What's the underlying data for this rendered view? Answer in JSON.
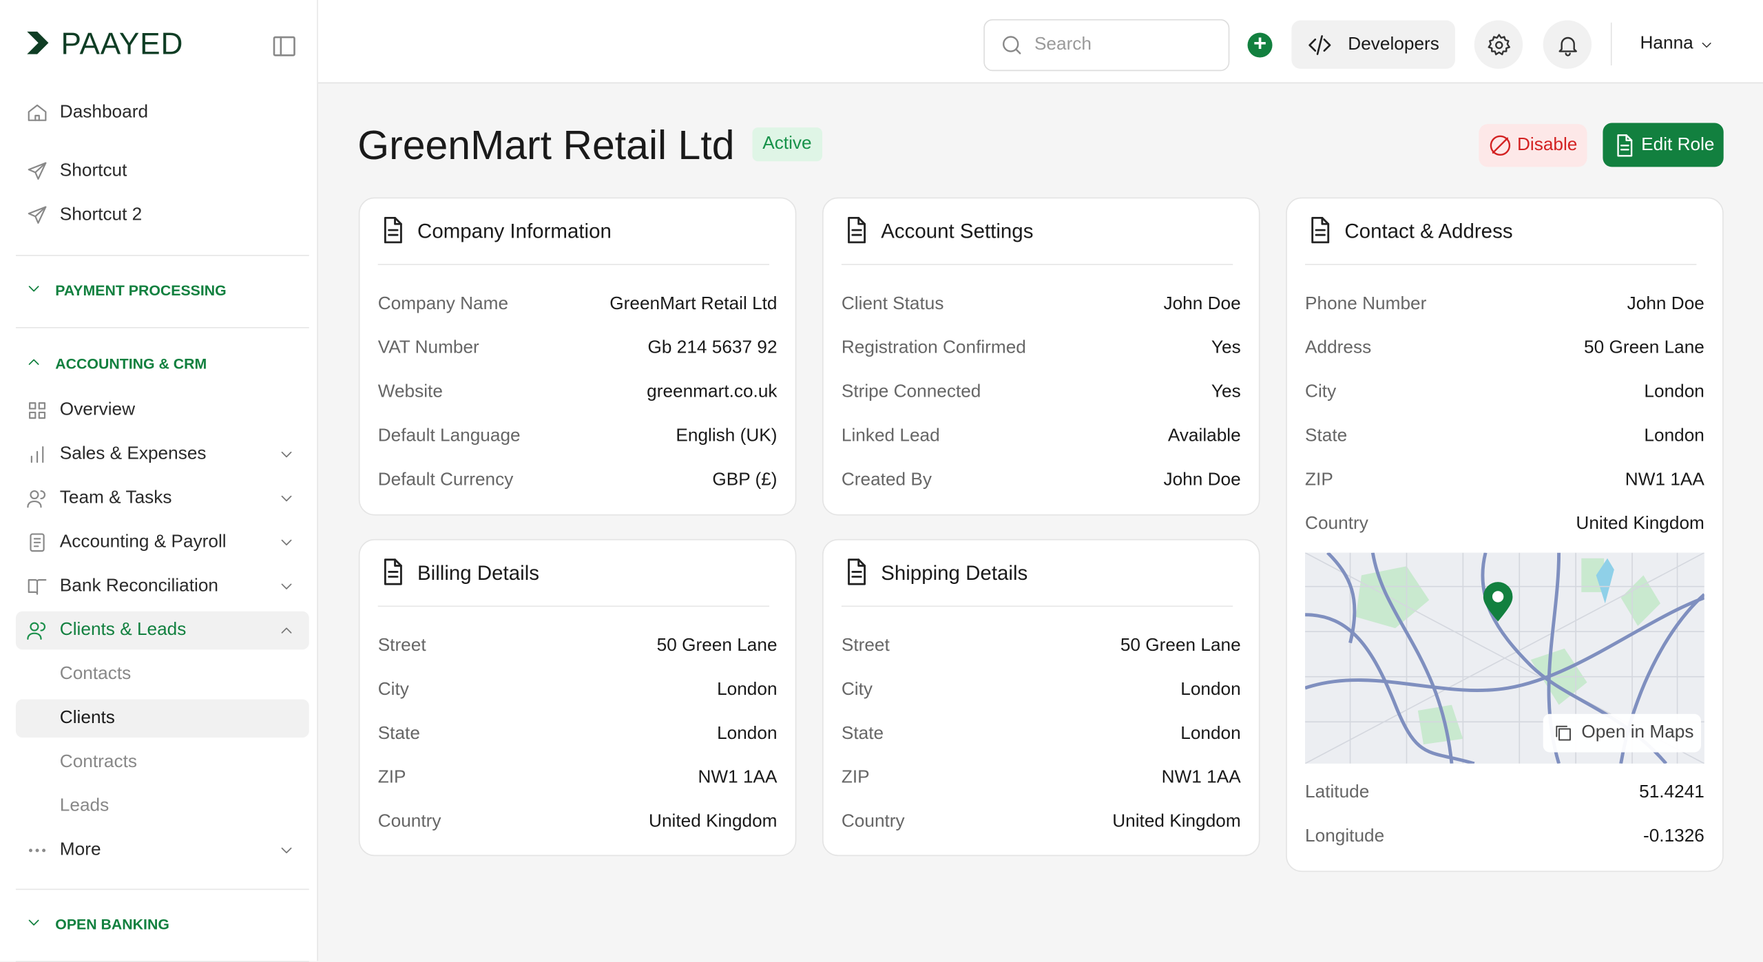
{
  "brand": "PAAYED",
  "sidebar": {
    "top": [
      "Dashboard",
      "Shortcut",
      "Shortcut 2"
    ],
    "sections": [
      {
        "title": "PAYMENT PROCESSING"
      },
      {
        "title": "ACCOUNTING & CRM",
        "items": [
          "Overview",
          "Sales & Expenses",
          "Team & Tasks",
          "Accounting & Payroll",
          "Bank Reconciliation",
          "Clients & Leads"
        ],
        "subitems": [
          "Contacts",
          "Clients",
          "Contracts",
          "Leads"
        ],
        "more": "More"
      },
      {
        "title": "OPEN BANKING"
      }
    ]
  },
  "header": {
    "search": "Search",
    "developers": "Developers",
    "user": "Hanna"
  },
  "page": {
    "title": "GreenMart Retail Ltd",
    "status": "Active",
    "disable": "Disable",
    "edit": "Edit Role"
  },
  "cards": [
    {
      "title": "Company Information",
      "rows": [
        [
          "Company Name",
          "GreenMart Retail Ltd"
        ],
        [
          "VAT Number",
          "Gb 214 5637 92"
        ],
        [
          "Website",
          "greenmart.co.uk"
        ],
        [
          "Default Language",
          "English (UK)"
        ],
        [
          "Default Currency",
          "GBP (£)"
        ]
      ]
    },
    {
      "title": "Account Settings",
      "rows": [
        [
          "Client Status",
          "John Doe"
        ],
        [
          "Registration Confirmed",
          "Yes"
        ],
        [
          "Stripe Connected",
          "Yes"
        ],
        [
          "Linked Lead",
          "Available"
        ],
        [
          "Created By",
          "John Doe"
        ]
      ]
    },
    {
      "title": "Contact & Address",
      "rows": [
        [
          "Phone Number",
          "John Doe"
        ],
        [
          "Address",
          "50 Green Lane"
        ],
        [
          "City",
          "London"
        ],
        [
          "State",
          "London"
        ],
        [
          "ZIP",
          "NW1 1AA"
        ],
        [
          "Country",
          "United Kingdom"
        ]
      ],
      "map_button": "Open in Maps",
      "rows_after": [
        [
          "Latitude",
          "51.4241"
        ],
        [
          "Longitude",
          "-0.1326"
        ]
      ]
    },
    {
      "title": "Billing Details",
      "rows": [
        [
          "Street",
          "50 Green Lane"
        ],
        [
          "City",
          "London"
        ],
        [
          "State",
          "London"
        ],
        [
          "ZIP",
          "NW1 1AA"
        ],
        [
          "Country",
          "United Kingdom"
        ]
      ]
    },
    {
      "title": "Shipping Details",
      "rows": [
        [
          "Street",
          "50 Green Lane"
        ],
        [
          "City",
          "London"
        ],
        [
          "State",
          "London"
        ],
        [
          "ZIP",
          "NW1 1AA"
        ],
        [
          "Country",
          "United Kingdom"
        ]
      ]
    }
  ]
}
